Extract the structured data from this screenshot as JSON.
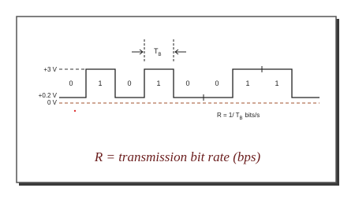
{
  "voltage_labels": [
    "+3 V",
    "+0.2 V",
    "0 V"
  ],
  "bits": [
    "0",
    "1",
    "0",
    "1",
    "0",
    "0",
    "1",
    "1"
  ],
  "bit_period": {
    "symbol": "T",
    "subscript": "B"
  },
  "rate_formula": {
    "prefix": "R = 1/ T",
    "subscript": "B",
    "suffix": "bits/s"
  },
  "caption": "R = transmission bit rate (bps)"
}
